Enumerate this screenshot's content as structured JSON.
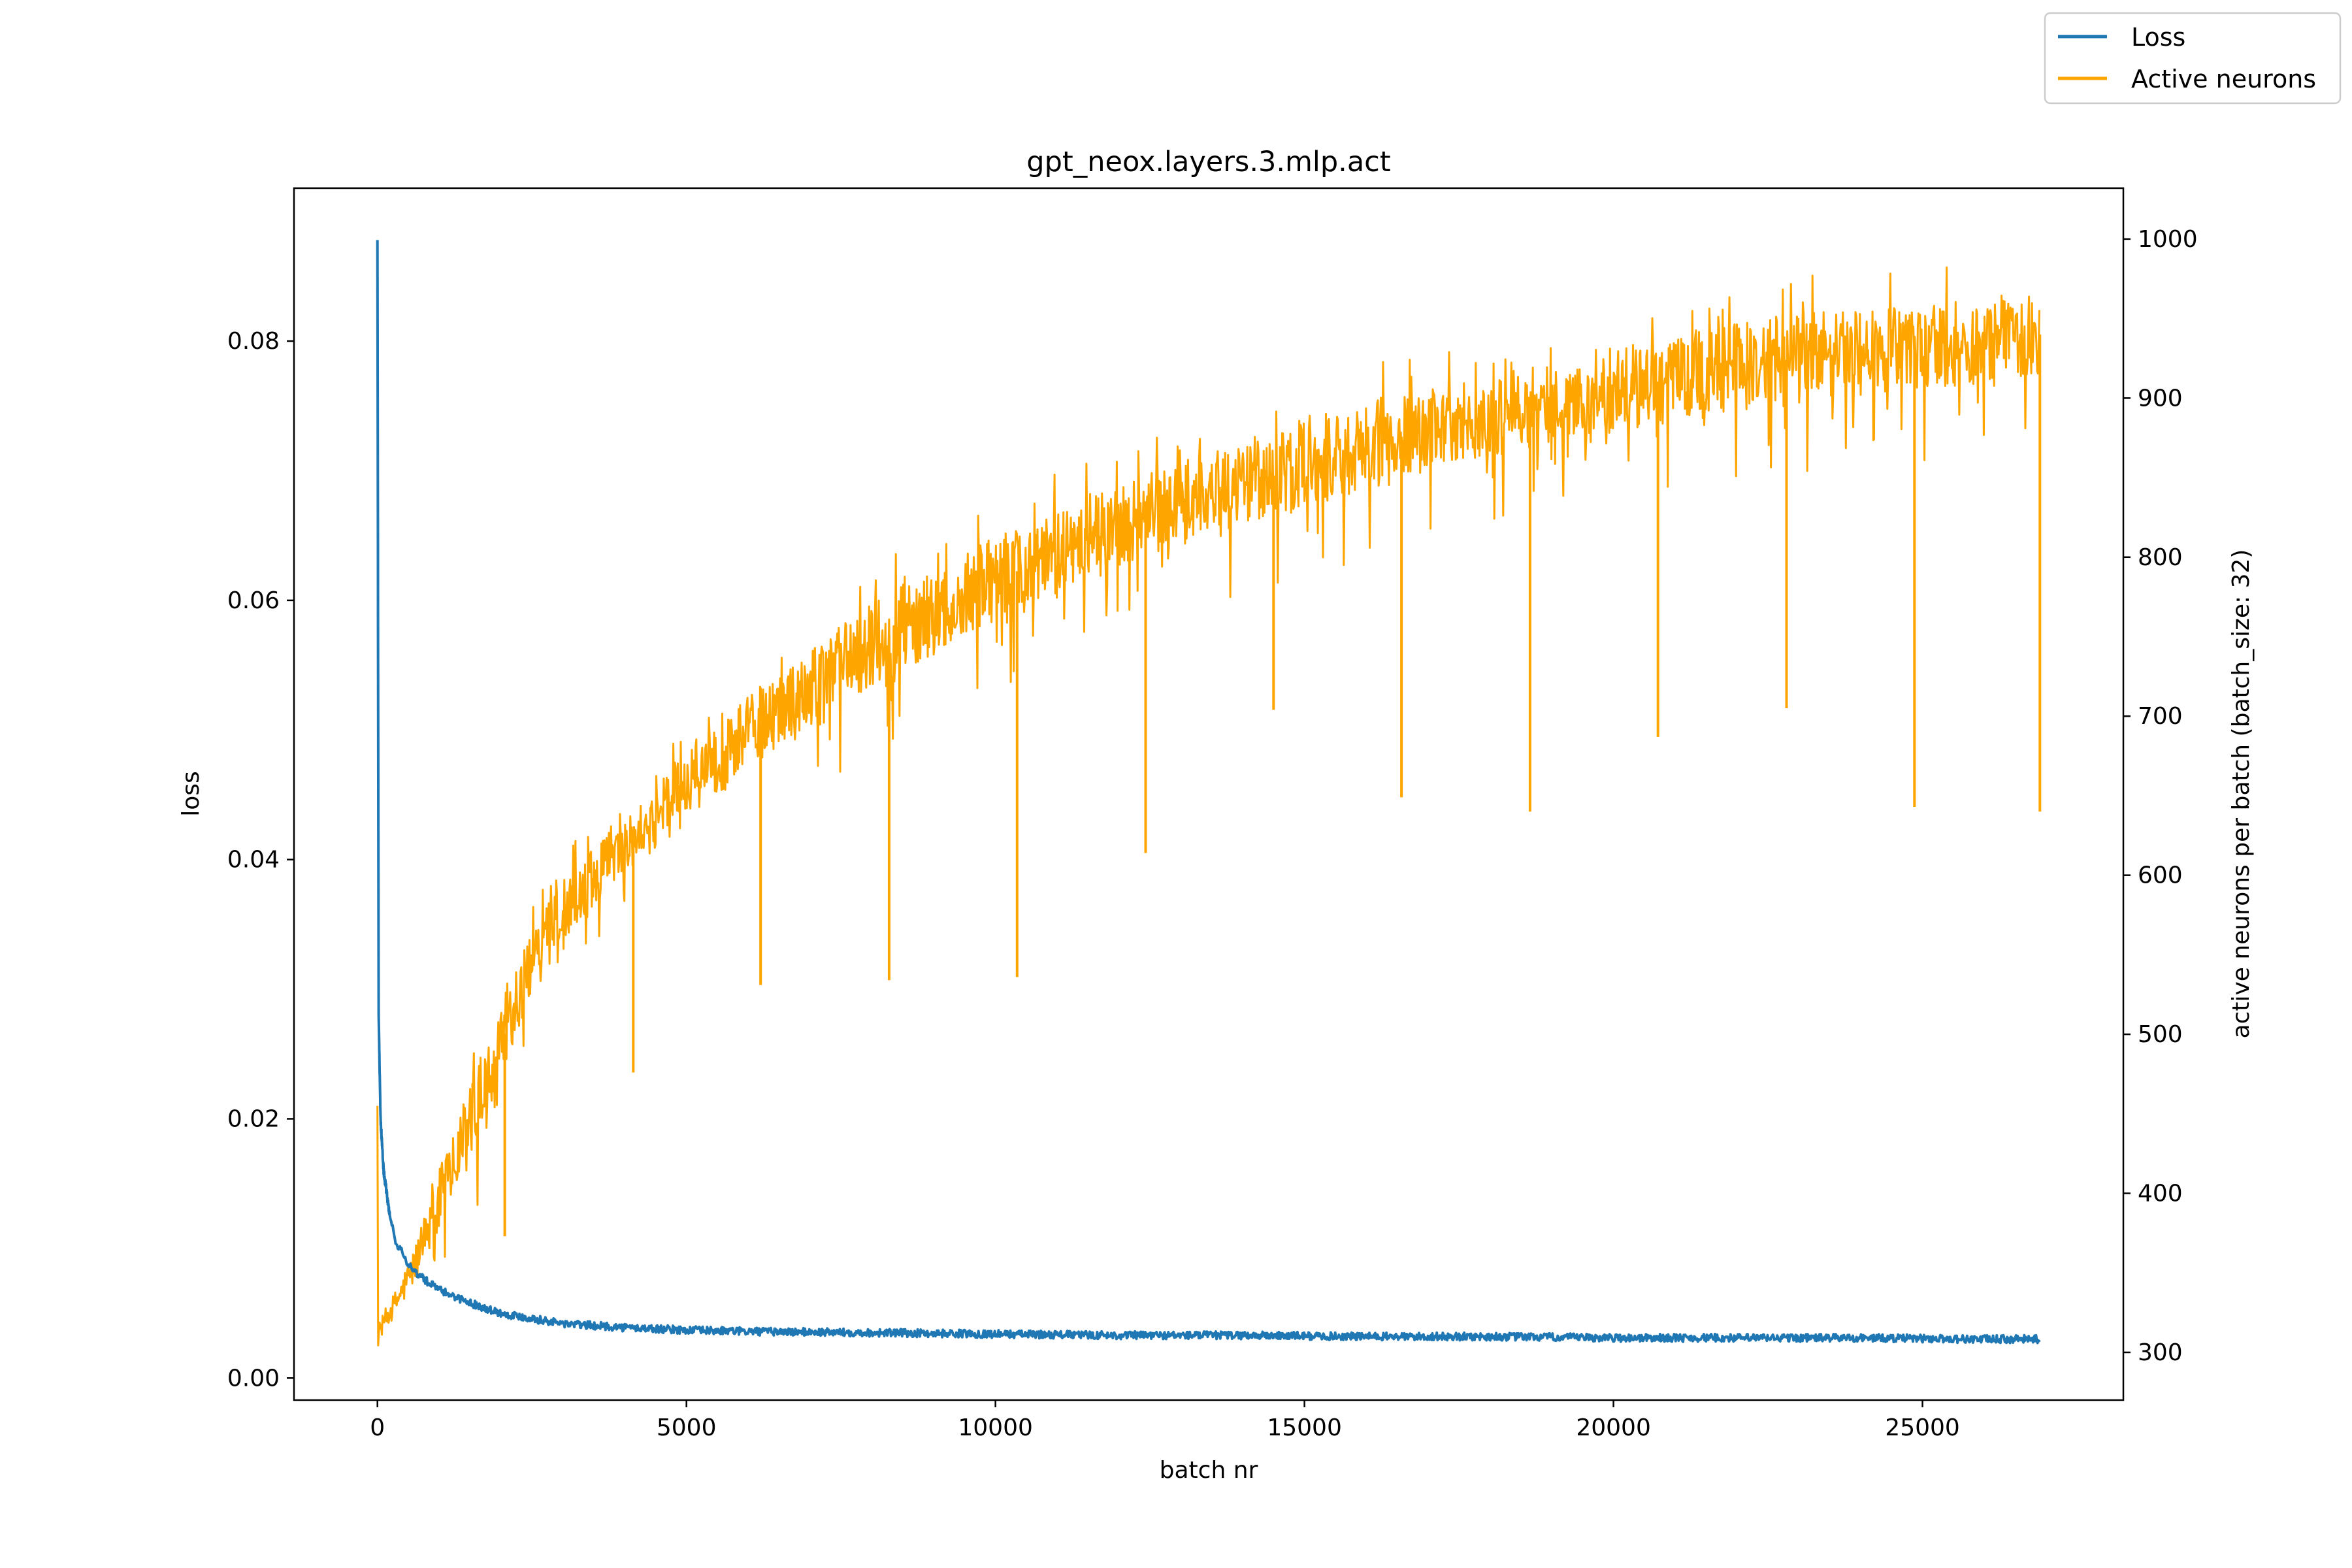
{
  "chart_data": {
    "type": "line",
    "title": "gpt_neox.layers.3.mlp.act",
    "xlabel": "batch nr",
    "ylabel_left": "loss",
    "ylabel_right": "active neurons per batch (batch_size: 32)",
    "xlim": [
      -1350,
      28250
    ],
    "ylim_left": [
      -0.0017,
      0.0918
    ],
    "ylim_right": [
      270,
      1032
    ],
    "x_ticks": [
      0,
      5000,
      10000,
      15000,
      20000,
      25000
    ],
    "y_left_ticks": [
      0.0,
      0.02,
      0.04,
      0.06,
      0.08
    ],
    "y_left_tick_labels": [
      "0.00",
      "0.02",
      "0.04",
      "0.06",
      "0.08"
    ],
    "y_right_ticks": [
      300,
      400,
      500,
      600,
      700,
      800,
      900,
      1000
    ],
    "grid": false,
    "legend_position": "top-right",
    "series": [
      {
        "name": "Loss",
        "axis": "left",
        "color": "#1f77b4",
        "x": [
          0,
          20,
          50,
          100,
          200,
          300,
          500,
          700,
          1000,
          1500,
          2000,
          3000,
          4000,
          5000,
          6000,
          8000,
          10000,
          12000,
          14000,
          16000,
          18000,
          20000,
          22000,
          24000,
          26000,
          26900
        ],
        "y": [
          0.0878,
          0.028,
          0.02,
          0.016,
          0.0125,
          0.0105,
          0.0088,
          0.0078,
          0.0068,
          0.0058,
          0.005,
          0.0042,
          0.0039,
          0.0037,
          0.0036,
          0.0035,
          0.0034,
          0.0033,
          0.0033,
          0.0032,
          0.0032,
          0.0031,
          0.0031,
          0.0031,
          0.003,
          0.003
        ]
      },
      {
        "name": "Active neurons",
        "axis": "right",
        "color": "#ffa500",
        "x": [
          0,
          20,
          100,
          300,
          500,
          800,
          1000,
          1500,
          2000,
          2500,
          3000,
          4000,
          5000,
          6000,
          7000,
          8000,
          9000,
          10000,
          12000,
          14000,
          16000,
          18000,
          20000,
          22000,
          24000,
          26000,
          26900
        ],
        "y": [
          455,
          310,
          318,
          330,
          345,
          372,
          395,
          440,
          495,
          540,
          575,
          620,
          655,
          690,
          715,
          745,
          765,
          785,
          820,
          845,
          870,
          890,
          905,
          920,
          930,
          935,
          940
        ],
        "band_low": [
          300,
          305,
          312,
          322,
          335,
          355,
          375,
          415,
          470,
          520,
          555,
          600,
          630,
          665,
          690,
          715,
          735,
          755,
          790,
          815,
          840,
          860,
          875,
          890,
          900,
          905,
          910
        ],
        "band_high": [
          455,
          320,
          326,
          340,
          358,
          392,
          420,
          470,
          525,
          570,
          600,
          640,
          680,
          715,
          745,
          775,
          795,
          815,
          850,
          875,
          900,
          915,
          935,
          950,
          960,
          965,
          970
        ],
        "dips": [
          {
            "x": 2060,
            "y": 373
          },
          {
            "x": 4140,
            "y": 476
          },
          {
            "x": 6200,
            "y": 531
          },
          {
            "x": 8280,
            "y": 534
          },
          {
            "x": 10350,
            "y": 536
          },
          {
            "x": 12430,
            "y": 614
          },
          {
            "x": 14500,
            "y": 704
          },
          {
            "x": 16570,
            "y": 649
          },
          {
            "x": 18650,
            "y": 640
          },
          {
            "x": 20720,
            "y": 687
          },
          {
            "x": 22800,
            "y": 705
          },
          {
            "x": 24870,
            "y": 643
          },
          {
            "x": 26900,
            "y": 640
          }
        ]
      }
    ]
  }
}
